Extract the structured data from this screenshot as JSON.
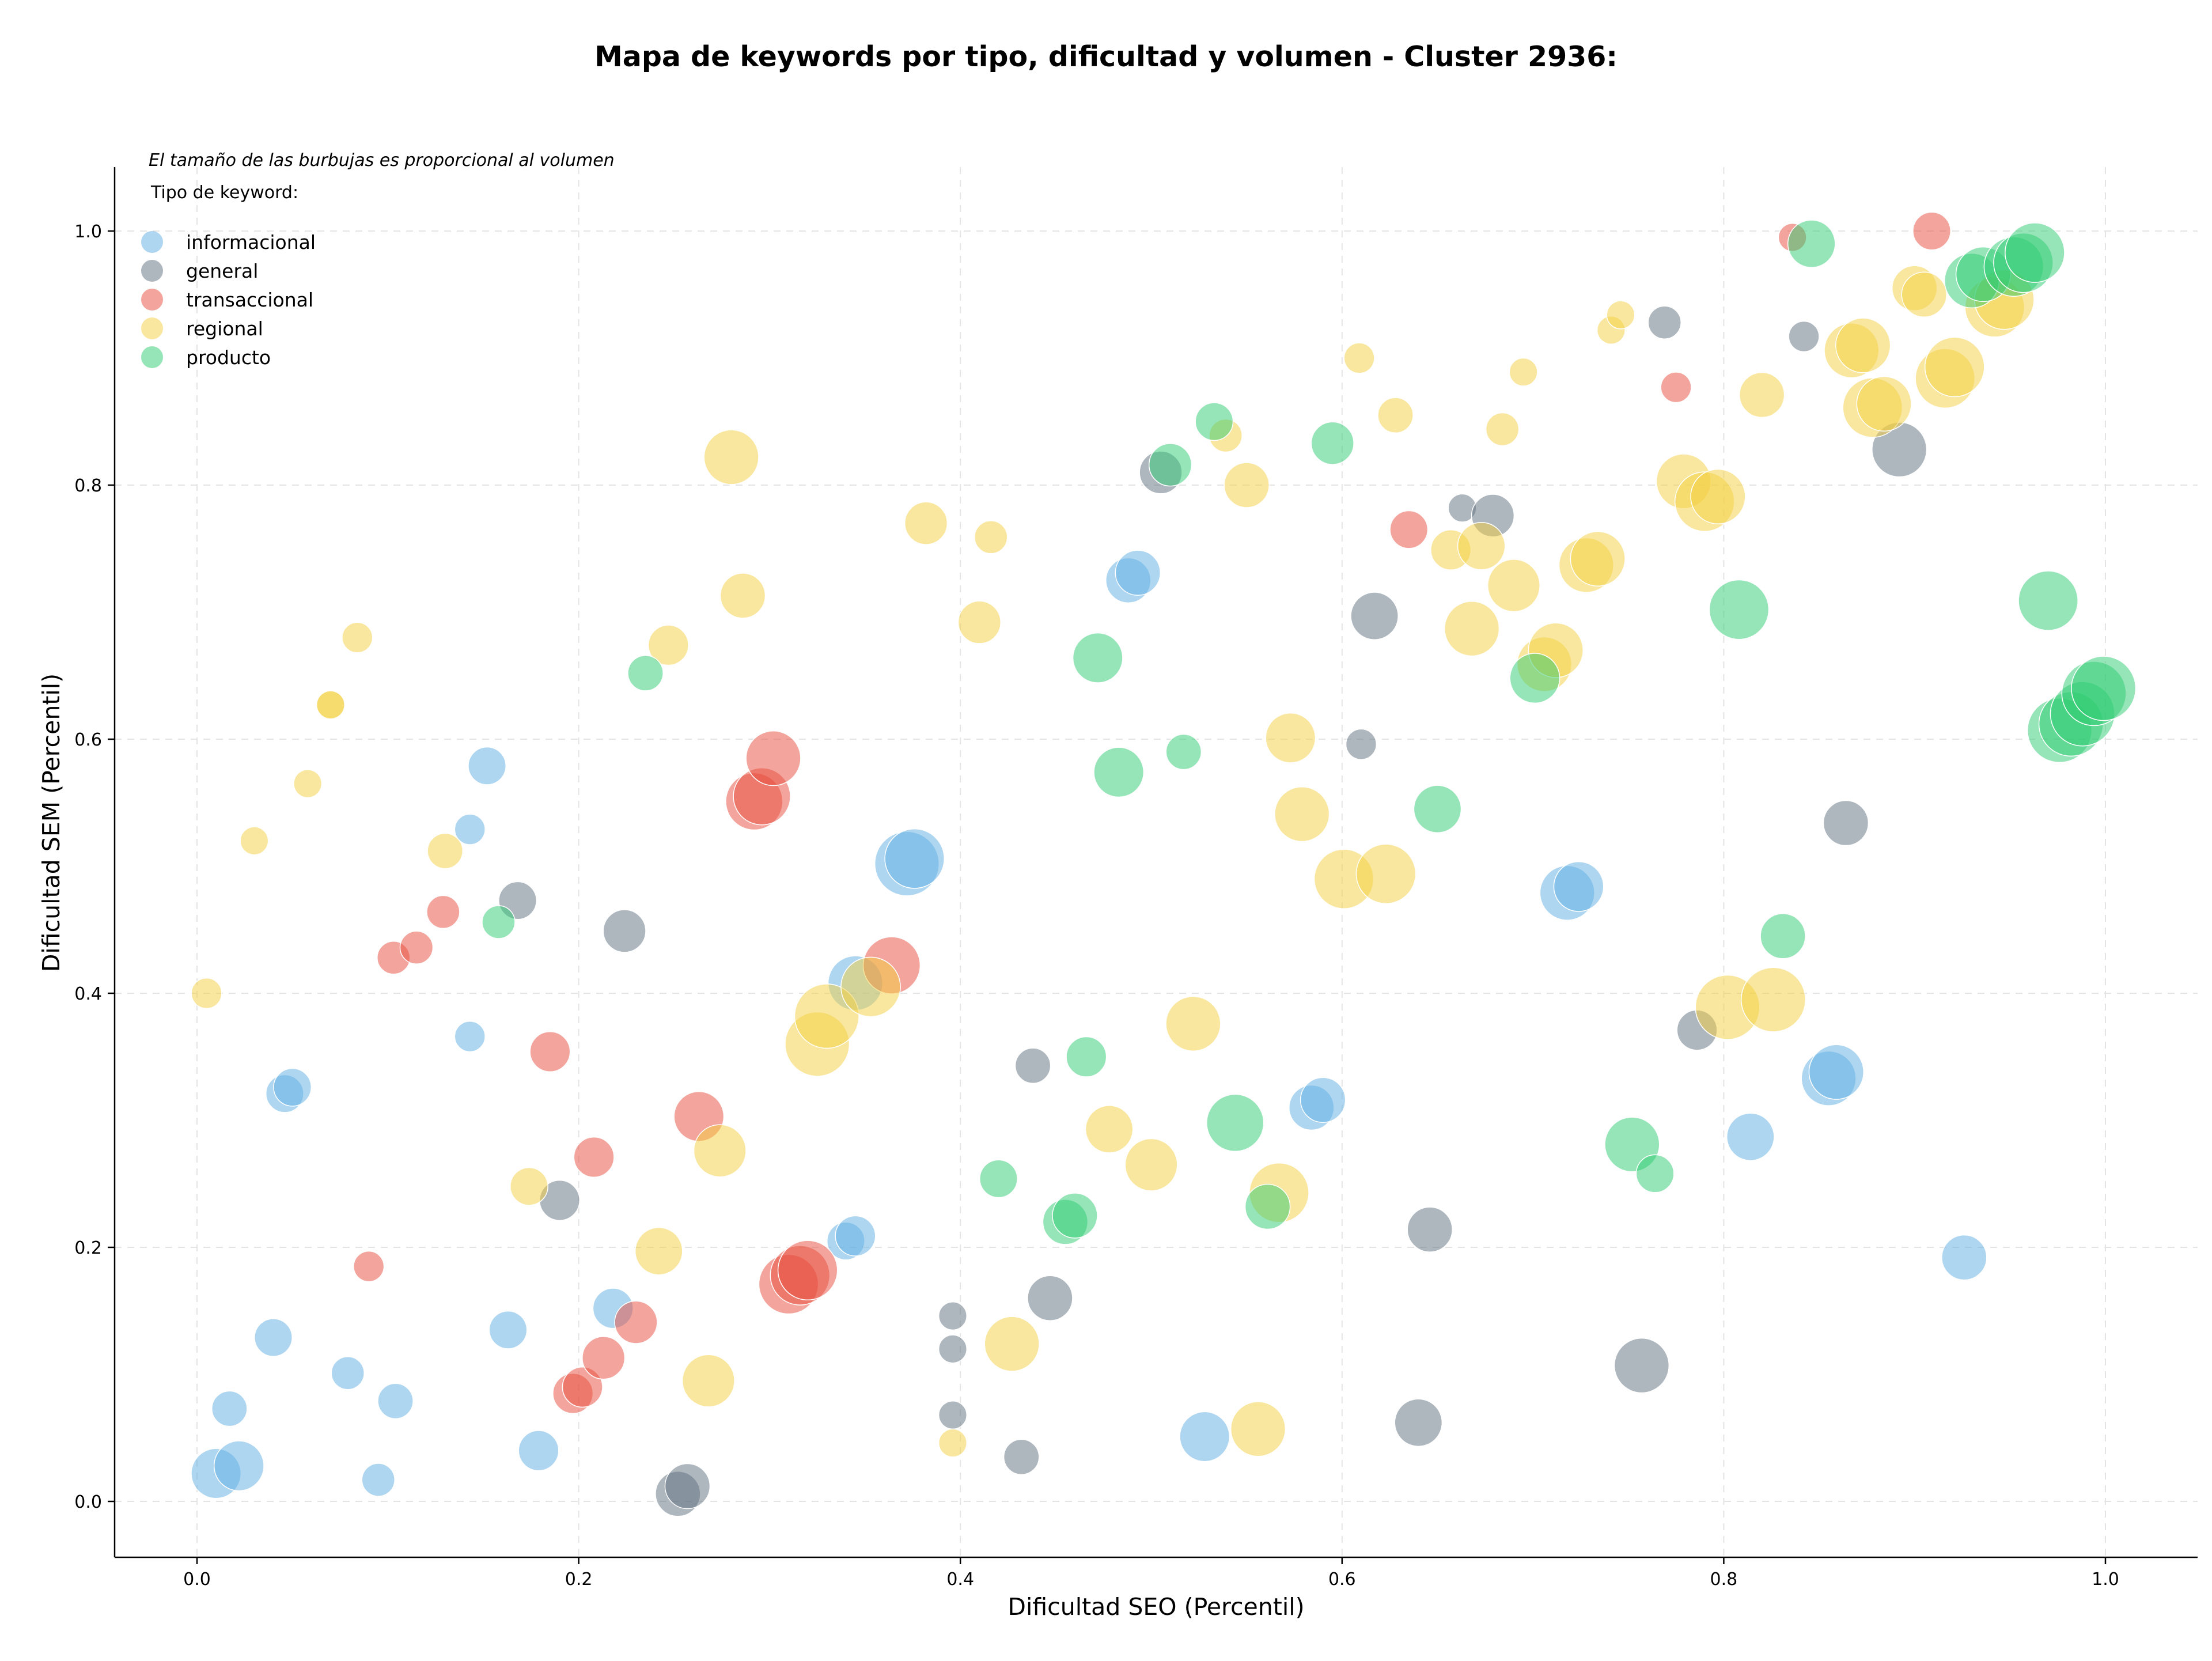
{
  "chart_data": {
    "type": "scatter",
    "title": "Mapa de keywords por tipo, dificultad y volumen - Cluster 2936:",
    "xlabel": "Dificultad SEO (Percentil)",
    "ylabel": "Dificultad SEM (Percentil)",
    "note": "El tamaño de las burbujas es proporcional al volumen",
    "legend_title": "Tipo de keyword:",
    "legend_position": "top-left",
    "xlim": [
      -0.045,
      1.05
    ],
    "ylim": [
      -0.045,
      1.05
    ],
    "xticks": [
      "0.0",
      "0.2",
      "0.4",
      "0.6",
      "0.8",
      "1.0"
    ],
    "yticks": [
      "0.0",
      "0.2",
      "0.4",
      "0.6",
      "0.8",
      "1.0"
    ],
    "grid": true,
    "series": [
      {
        "name": "informacional",
        "color": "#5dade2",
        "points": [
          [
            0.01,
            0.022,
            0.6
          ],
          [
            0.022,
            0.028,
            0.6
          ],
          [
            0.017,
            0.073,
            0.3
          ],
          [
            0.04,
            0.129,
            0.35
          ],
          [
            0.046,
            0.321,
            0.35
          ],
          [
            0.05,
            0.326,
            0.35
          ],
          [
            0.079,
            0.101,
            0.25
          ],
          [
            0.095,
            0.017,
            0.25
          ],
          [
            0.104,
            0.079,
            0.3
          ],
          [
            0.143,
            0.529,
            0.2
          ],
          [
            0.143,
            0.366,
            0.2
          ],
          [
            0.152,
            0.579,
            0.35
          ],
          [
            0.163,
            0.135,
            0.35
          ],
          [
            0.179,
            0.04,
            0.4
          ],
          [
            0.218,
            0.152,
            0.4
          ],
          [
            0.34,
            0.205,
            0.35
          ],
          [
            0.345,
            0.209,
            0.4
          ],
          [
            0.345,
            0.408,
            0.7
          ],
          [
            0.372,
            0.502,
            0.9
          ],
          [
            0.376,
            0.506,
            0.8
          ],
          [
            0.488,
            0.725,
            0.5
          ],
          [
            0.493,
            0.731,
            0.5
          ],
          [
            0.528,
            0.051,
            0.6
          ],
          [
            0.584,
            0.31,
            0.5
          ],
          [
            0.59,
            0.316,
            0.5
          ],
          [
            0.718,
            0.479,
            0.7
          ],
          [
            0.724,
            0.484,
            0.6
          ],
          [
            0.855,
            0.333,
            0.7
          ],
          [
            0.859,
            0.338,
            0.7
          ],
          [
            0.814,
            0.287,
            0.55
          ],
          [
            0.926,
            0.192,
            0.5
          ]
        ]
      },
      {
        "name": "general",
        "color": "#5d6d7e",
        "points": [
          [
            0.168,
            0.473,
            0.35
          ],
          [
            0.19,
            0.237,
            0.4
          ],
          [
            0.224,
            0.449,
            0.45
          ],
          [
            0.252,
            0.006,
            0.5
          ],
          [
            0.257,
            0.012,
            0.5
          ],
          [
            0.396,
            0.146,
            0.15
          ],
          [
            0.396,
            0.12,
            0.15
          ],
          [
            0.396,
            0.068,
            0.15
          ],
          [
            0.432,
            0.035,
            0.3
          ],
          [
            0.438,
            0.343,
            0.3
          ],
          [
            0.447,
            0.16,
            0.5
          ],
          [
            0.505,
            0.81,
            0.45
          ],
          [
            0.61,
            0.596,
            0.2
          ],
          [
            0.617,
            0.697,
            0.55
          ],
          [
            0.64,
            0.062,
            0.55
          ],
          [
            0.646,
            0.214,
            0.5
          ],
          [
            0.663,
            0.782,
            0.15
          ],
          [
            0.679,
            0.776,
            0.45
          ],
          [
            0.757,
            0.107,
            0.7
          ],
          [
            0.769,
            0.928,
            0.25
          ],
          [
            0.786,
            0.371,
            0.4
          ],
          [
            0.842,
            0.917,
            0.2
          ],
          [
            0.864,
            0.534,
            0.5
          ],
          [
            0.892,
            0.828,
            0.7
          ]
        ]
      },
      {
        "name": "transaccional",
        "color": "#e74c3c",
        "points": [
          [
            0.09,
            0.185,
            0.2
          ],
          [
            0.103,
            0.428,
            0.25
          ],
          [
            0.115,
            0.436,
            0.25
          ],
          [
            0.129,
            0.464,
            0.25
          ],
          [
            0.185,
            0.354,
            0.4
          ],
          [
            0.197,
            0.085,
            0.4
          ],
          [
            0.202,
            0.09,
            0.4
          ],
          [
            0.208,
            0.271,
            0.4
          ],
          [
            0.213,
            0.113,
            0.45
          ],
          [
            0.23,
            0.141,
            0.45
          ],
          [
            0.263,
            0.303,
            0.6
          ],
          [
            0.292,
            0.551,
            0.75
          ],
          [
            0.296,
            0.555,
            0.75
          ],
          [
            0.302,
            0.585,
            0.7
          ],
          [
            0.31,
            0.171,
            0.8
          ],
          [
            0.316,
            0.178,
            0.8
          ],
          [
            0.32,
            0.182,
            0.8
          ],
          [
            0.364,
            0.422,
            0.75
          ],
          [
            0.635,
            0.765,
            0.35
          ],
          [
            0.775,
            0.877,
            0.2
          ],
          [
            0.836,
            0.995,
            0.15
          ],
          [
            0.909,
            1.0,
            0.35
          ]
        ]
      },
      {
        "name": "regional",
        "color": "#f4d03f",
        "points": [
          [
            0.005,
            0.4,
            0.2
          ],
          [
            0.03,
            0.52,
            0.15
          ],
          [
            0.058,
            0.565,
            0.15
          ],
          [
            0.07,
            0.627,
            0.15
          ],
          [
            0.07,
            0.627,
            0.15
          ],
          [
            0.084,
            0.68,
            0.2
          ],
          [
            0.13,
            0.512,
            0.3
          ],
          [
            0.174,
            0.248,
            0.35
          ],
          [
            0.242,
            0.197,
            0.55
          ],
          [
            0.247,
            0.674,
            0.4
          ],
          [
            0.268,
            0.095,
            0.65
          ],
          [
            0.274,
            0.276,
            0.65
          ],
          [
            0.28,
            0.822,
            0.7
          ],
          [
            0.286,
            0.713,
            0.5
          ],
          [
            0.325,
            0.36,
            0.9
          ],
          [
            0.33,
            0.382,
            0.9
          ],
          [
            0.353,
            0.405,
            0.8
          ],
          [
            0.382,
            0.77,
            0.45
          ],
          [
            0.396,
            0.046,
            0.15
          ],
          [
            0.41,
            0.692,
            0.45
          ],
          [
            0.416,
            0.759,
            0.25
          ],
          [
            0.427,
            0.124,
            0.7
          ],
          [
            0.478,
            0.293,
            0.55
          ],
          [
            0.5,
            0.265,
            0.65
          ],
          [
            0.522,
            0.376,
            0.7
          ],
          [
            0.539,
            0.839,
            0.25
          ],
          [
            0.55,
            0.8,
            0.5
          ],
          [
            0.556,
            0.057,
            0.7
          ],
          [
            0.567,
            0.243,
            0.8
          ],
          [
            0.573,
            0.601,
            0.6
          ],
          [
            0.579,
            0.541,
            0.7
          ],
          [
            0.601,
            0.49,
            0.8
          ],
          [
            0.623,
            0.494,
            0.8
          ],
          [
            0.609,
            0.9,
            0.2
          ],
          [
            0.628,
            0.855,
            0.3
          ],
          [
            0.657,
            0.749,
            0.4
          ],
          [
            0.668,
            0.687,
            0.7
          ],
          [
            0.673,
            0.752,
            0.55
          ],
          [
            0.69,
            0.721,
            0.65
          ],
          [
            0.684,
            0.844,
            0.25
          ],
          [
            0.695,
            0.889,
            0.15
          ],
          [
            0.706,
            0.659,
            0.7
          ],
          [
            0.712,
            0.67,
            0.7
          ],
          [
            0.728,
            0.737,
            0.7
          ],
          [
            0.734,
            0.742,
            0.7
          ],
          [
            0.741,
            0.922,
            0.15
          ],
          [
            0.746,
            0.934,
            0.15
          ],
          [
            0.779,
            0.803,
            0.7
          ],
          [
            0.79,
            0.787,
            0.8
          ],
          [
            0.797,
            0.791,
            0.7
          ],
          [
            0.802,
            0.389,
            0.9
          ],
          [
            0.826,
            0.395,
            0.9
          ],
          [
            0.82,
            0.871,
            0.5
          ],
          [
            0.867,
            0.906,
            0.7
          ],
          [
            0.873,
            0.91,
            0.7
          ],
          [
            0.878,
            0.861,
            0.8
          ],
          [
            0.884,
            0.864,
            0.7
          ],
          [
            0.9,
            0.955,
            0.5
          ],
          [
            0.905,
            0.95,
            0.5
          ],
          [
            0.916,
            0.884,
            0.8
          ],
          [
            0.921,
            0.893,
            0.8
          ],
          [
            0.942,
            0.94,
            0.8
          ],
          [
            0.947,
            0.946,
            0.8
          ]
        ]
      },
      {
        "name": "producto",
        "color": "#2ecc71",
        "points": [
          [
            0.158,
            0.456,
            0.25
          ],
          [
            0.235,
            0.652,
            0.3
          ],
          [
            0.42,
            0.254,
            0.35
          ],
          [
            0.455,
            0.22,
            0.5
          ],
          [
            0.46,
            0.225,
            0.5
          ],
          [
            0.466,
            0.35,
            0.4
          ],
          [
            0.472,
            0.664,
            0.6
          ],
          [
            0.483,
            0.574,
            0.6
          ],
          [
            0.51,
            0.816,
            0.45
          ],
          [
            0.517,
            0.59,
            0.3
          ],
          [
            0.533,
            0.85,
            0.35
          ],
          [
            0.544,
            0.298,
            0.75
          ],
          [
            0.561,
            0.232,
            0.5
          ],
          [
            0.595,
            0.833,
            0.45
          ],
          [
            0.65,
            0.545,
            0.55
          ],
          [
            0.701,
            0.648,
            0.6
          ],
          [
            0.752,
            0.281,
            0.7
          ],
          [
            0.764,
            0.258,
            0.35
          ],
          [
            0.808,
            0.702,
            0.8
          ],
          [
            0.831,
            0.445,
            0.5
          ],
          [
            0.846,
            0.99,
            0.55
          ],
          [
            0.93,
            0.961,
            0.7
          ],
          [
            0.936,
            0.966,
            0.7
          ],
          [
            0.952,
            0.972,
            0.8
          ],
          [
            0.957,
            0.975,
            0.8
          ],
          [
            0.963,
            0.983,
            0.8
          ],
          [
            0.97,
            0.709,
            0.8
          ],
          [
            0.976,
            0.607,
            0.9
          ],
          [
            0.982,
            0.612,
            0.9
          ],
          [
            0.988,
            0.62,
            0.9
          ],
          [
            0.994,
            0.636,
            0.9
          ],
          [
            0.999,
            0.64,
            0.9
          ]
        ]
      }
    ]
  }
}
